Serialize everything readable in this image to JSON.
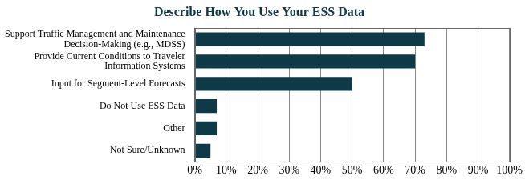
{
  "chart_data": {
    "type": "bar",
    "orientation": "horizontal",
    "title": "Describe How You Use Your ESS Data",
    "categories": [
      "Support Traffic Management and Maintenance Decision-Making (e.g., MDSS)",
      "Provide Current Conditions to Traveler Information Systems",
      "Input for Segment-Level Forecasts",
      "Do Not Use ESS Data",
      "Other",
      "Not Sure/Unknown"
    ],
    "values": [
      73,
      70,
      50,
      7,
      7,
      5
    ],
    "color": "#0e3a48",
    "xlim": [
      0,
      100
    ],
    "xticks": [
      {
        "value": 0,
        "label": "0%"
      },
      {
        "value": 10,
        "label": "10%"
      },
      {
        "value": 20,
        "label": "20%"
      },
      {
        "value": 30,
        "label": "30%"
      },
      {
        "value": 40,
        "label": "40%"
      },
      {
        "value": 50,
        "label": "50%"
      },
      {
        "value": 60,
        "label": "60%"
      },
      {
        "value": 70,
        "label": "70%"
      },
      {
        "value": 80,
        "label": "80%"
      },
      {
        "value": 90,
        "label": "90%"
      },
      {
        "value": 100,
        "label": "100%"
      }
    ],
    "grid": true
  }
}
